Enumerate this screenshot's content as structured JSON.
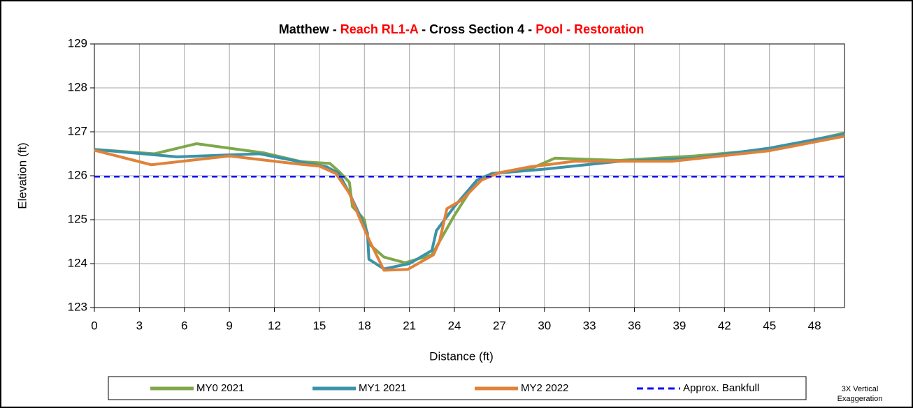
{
  "chart_data": {
    "type": "line",
    "title_segments": [
      {
        "text": "Matthew - ",
        "color": "#000000"
      },
      {
        "text": "Reach RL1-A",
        "color": "#ff0000"
      },
      {
        "text": " - Cross Section 4 - ",
        "color": "#000000"
      },
      {
        "text": "Pool - Restoration",
        "color": "#ff0000"
      }
    ],
    "x_label": "Distance (ft)",
    "y_label": "Elevation (ft)",
    "annotation": [
      "3X Vertical",
      "Exaggeration"
    ],
    "xlim": [
      0,
      50
    ],
    "ylim": [
      123,
      129
    ],
    "xticks": [
      0,
      3,
      6,
      9,
      12,
      15,
      18,
      21,
      24,
      27,
      30,
      33,
      36,
      39,
      42,
      45,
      48
    ],
    "yticks": [
      123,
      124,
      125,
      126,
      127,
      128,
      129
    ],
    "grid": true,
    "series": [
      {
        "name": "MY0 2021",
        "color": "#7fa84a",
        "dashed": false,
        "x": [
          0,
          4,
          6.8,
          11.3,
          13.8,
          15.7,
          16.3,
          17,
          17.2,
          18,
          18.3,
          19.3,
          20.7,
          22.5,
          23,
          24,
          25.5,
          26.5,
          29,
          30.7,
          35,
          40,
          45,
          50
        ],
        "values": [
          126.6,
          126.5,
          126.73,
          126.52,
          126.32,
          126.28,
          126.1,
          125.85,
          125.3,
          125,
          124.45,
          124.15,
          124.02,
          124.2,
          124.5,
          125.1,
          125.9,
          126.05,
          126.15,
          126.4,
          126.35,
          126.45,
          126.6,
          126.97
        ]
      },
      {
        "name": "MY1 2021",
        "color": "#3a93a8",
        "dashed": false,
        "x": [
          0,
          5.5,
          11,
          14,
          15.5,
          16.3,
          17,
          17.7,
          18.2,
          18.3,
          19.3,
          21,
          22.5,
          22.8,
          24,
          25.5,
          26.5,
          30,
          35,
          40,
          45,
          50
        ],
        "values": [
          126.6,
          126.43,
          126.5,
          126.3,
          126.2,
          126.05,
          125.6,
          125.1,
          124.7,
          124.1,
          123.88,
          124,
          124.3,
          124.75,
          125.3,
          125.9,
          126.05,
          126.15,
          126.33,
          126.4,
          126.63,
          126.95
        ]
      },
      {
        "name": "MY2 2022",
        "color": "#e0823a",
        "dashed": false,
        "x": [
          0,
          3.8,
          9,
          13.5,
          15,
          16.1,
          17,
          17.6,
          18.3,
          19.3,
          20.9,
          22.6,
          23,
          23.5,
          24.5,
          25.8,
          27,
          29,
          32,
          35,
          38.5,
          45,
          50
        ],
        "values": [
          126.58,
          126.25,
          126.45,
          126.27,
          126.22,
          126.05,
          125.6,
          125.1,
          124.55,
          123.85,
          123.87,
          124.2,
          124.5,
          125.25,
          125.45,
          125.9,
          126.07,
          126.2,
          126.33,
          126.33,
          126.33,
          126.57,
          126.9
        ]
      },
      {
        "name": "Approx. Bankfull",
        "color": "#0000ff",
        "dashed": true,
        "x": [
          0,
          50
        ],
        "values": [
          125.98,
          125.98
        ]
      }
    ]
  }
}
